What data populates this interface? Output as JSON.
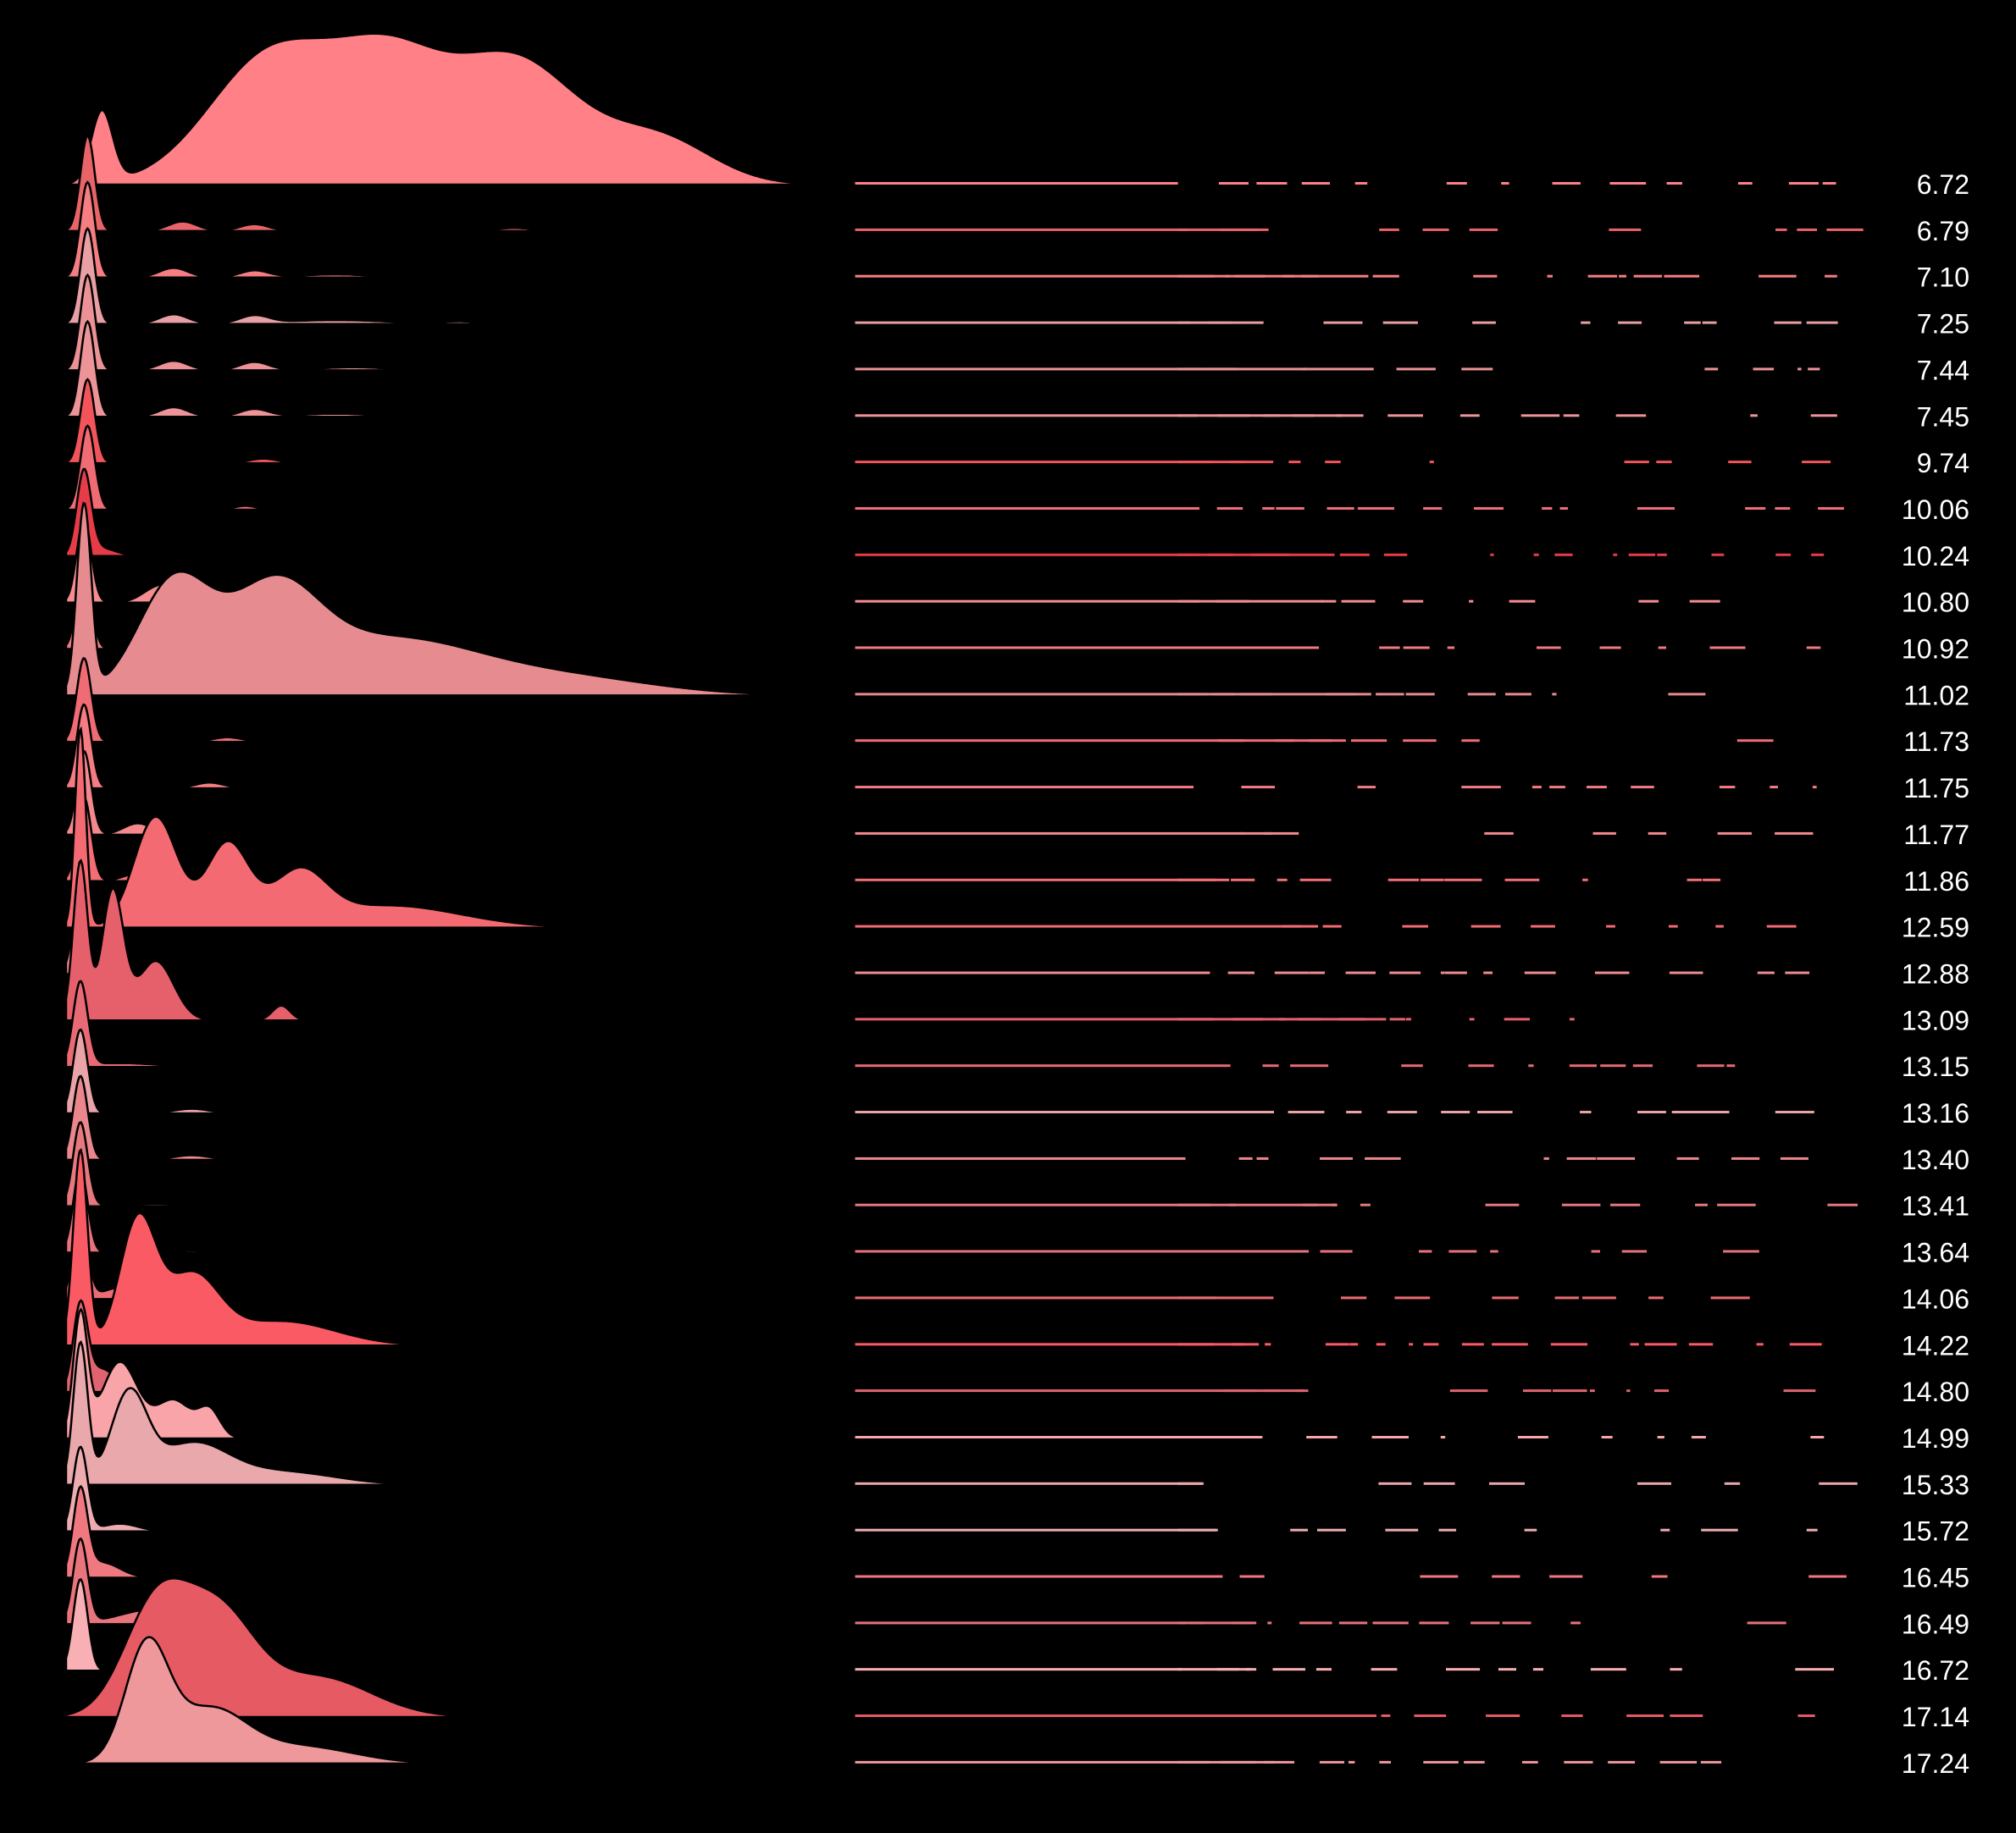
{
  "chart_data": {
    "type": "ridgeline",
    "title": "",
    "xlabel": "",
    "ylabel": "",
    "background": "#000000",
    "outline_color": "#000000",
    "label_color": "#ffffff",
    "x_range": [
      0,
      1
    ],
    "legend": "none",
    "grid": false,
    "rows": [
      {
        "label": "6.72",
        "color": "#ff8086",
        "peaks": [
          [
            0.02,
            0.006,
            0.55
          ],
          [
            0.115,
            0.035,
            1.0
          ],
          [
            0.18,
            0.03,
            0.85
          ],
          [
            0.25,
            0.035,
            0.95
          ],
          [
            0.33,
            0.03,
            0.35
          ]
        ],
        "scale": 3.4
      },
      {
        "label": "6.79",
        "color": "#e86468",
        "peaks": [
          [
            0.012,
            0.004,
            2.5
          ],
          [
            0.065,
            0.008,
            0.25
          ],
          [
            0.105,
            0.008,
            0.18
          ],
          [
            0.25,
            0.01,
            0.08
          ]
        ],
        "scale": 1.0
      },
      {
        "label": "7.10",
        "color": "#f57e82",
        "peaks": [
          [
            0.012,
            0.004,
            2.5
          ],
          [
            0.06,
            0.008,
            0.25
          ],
          [
            0.105,
            0.008,
            0.18
          ],
          [
            0.15,
            0.02,
            0.08
          ]
        ],
        "scale": 1.0
      },
      {
        "label": "7.25",
        "color": "#e8a0a4",
        "peaks": [
          [
            0.012,
            0.004,
            2.5
          ],
          [
            0.06,
            0.008,
            0.25
          ],
          [
            0.105,
            0.008,
            0.2
          ],
          [
            0.15,
            0.03,
            0.1
          ],
          [
            0.22,
            0.01,
            0.06
          ]
        ],
        "scale": 1.0
      },
      {
        "label": "7.44",
        "color": "#ec9296",
        "peaks": [
          [
            0.012,
            0.004,
            2.5
          ],
          [
            0.06,
            0.008,
            0.25
          ],
          [
            0.105,
            0.008,
            0.22
          ],
          [
            0.16,
            0.02,
            0.08
          ]
        ],
        "scale": 1.0
      },
      {
        "label": "7.45",
        "color": "#ec9498",
        "peaks": [
          [
            0.012,
            0.004,
            2.5
          ],
          [
            0.06,
            0.008,
            0.25
          ],
          [
            0.105,
            0.008,
            0.2
          ],
          [
            0.15,
            0.02,
            0.08
          ],
          [
            0.23,
            0.01,
            0.05
          ]
        ],
        "scale": 1.0
      },
      {
        "label": "9.74",
        "color": "#f2545c",
        "peaks": [
          [
            0.012,
            0.004,
            2.2
          ],
          [
            0.11,
            0.008,
            0.12
          ]
        ],
        "scale": 1.0
      },
      {
        "label": "10.06",
        "color": "#f06c74",
        "peaks": [
          [
            0.012,
            0.004,
            2.2
          ],
          [
            0.1,
            0.006,
            0.1
          ]
        ],
        "scale": 1.0
      },
      {
        "label": "10.24",
        "color": "#e63c48",
        "peaks": [
          [
            0.01,
            0.004,
            2.2
          ],
          [
            0.02,
            0.008,
            0.2
          ]
        ],
        "scale": 1.0
      },
      {
        "label": "10.80",
        "color": "#f58c90",
        "peaks": [
          [
            0.01,
            0.004,
            2.2
          ],
          [
            0.05,
            0.008,
            0.35
          ],
          [
            0.065,
            0.008,
            0.5
          ]
        ],
        "scale": 1.0
      },
      {
        "label": "10.92",
        "color": "#f07a80",
        "peaks": [
          [
            0.01,
            0.004,
            2.2
          ]
        ],
        "scale": 1.0
      },
      {
        "label": "11.02",
        "color": "#e68c90",
        "peaks": [
          [
            0.01,
            0.004,
            1.7
          ],
          [
            0.06,
            0.02,
            1.0
          ],
          [
            0.115,
            0.025,
            0.85
          ],
          [
            0.18,
            0.05,
            0.5
          ],
          [
            0.28,
            0.05,
            0.15
          ]
        ],
        "scale": 2.9
      },
      {
        "label": "11.73",
        "color": "#f06c74",
        "peaks": [
          [
            0.01,
            0.004,
            2.2
          ],
          [
            0.09,
            0.008,
            0.12
          ]
        ],
        "scale": 1.0
      },
      {
        "label": "11.75",
        "color": "#f47c82",
        "peaks": [
          [
            0.01,
            0.004,
            2.2
          ],
          [
            0.08,
            0.008,
            0.15
          ]
        ],
        "scale": 1.0
      },
      {
        "label": "11.77",
        "color": "#f4888c",
        "peaks": [
          [
            0.01,
            0.004,
            2.2
          ],
          [
            0.04,
            0.008,
            0.3
          ]
        ],
        "scale": 1.0
      },
      {
        "label": "11.86",
        "color": "#f26e74",
        "peaks": [
          [
            0.01,
            0.004,
            2.2
          ],
          [
            0.04,
            0.008,
            0.2
          ]
        ],
        "scale": 1.0
      },
      {
        "label": "12.59",
        "color": "#f46a72",
        "peaks": [
          [
            0.008,
            0.003,
            1.8
          ],
          [
            0.05,
            0.012,
            1.0
          ],
          [
            0.09,
            0.012,
            0.75
          ],
          [
            0.13,
            0.015,
            0.45
          ],
          [
            0.18,
            0.04,
            0.2
          ]
        ],
        "scale": 2.9
      },
      {
        "label": "12.88",
        "color": "#f28c90",
        "peaks": [
          [
            0.008,
            0.004,
            2.2
          ]
        ],
        "scale": 1.0
      },
      {
        "label": "13.09",
        "color": "#e6606c",
        "peaks": [
          [
            0.008,
            0.004,
            1.6
          ],
          [
            0.026,
            0.006,
            1.3
          ],
          [
            0.05,
            0.01,
            0.6
          ],
          [
            0.12,
            0.005,
            0.15
          ]
        ],
        "scale": 2.6
      },
      {
        "label": "13.15",
        "color": "#e86a74",
        "peaks": [
          [
            0.008,
            0.004,
            2.2
          ],
          [
            0.03,
            0.02,
            0.1
          ]
        ],
        "scale": 1.0
      },
      {
        "label": "13.16",
        "color": "#eaa4a8",
        "peaks": [
          [
            0.008,
            0.004,
            2.2
          ],
          [
            0.07,
            0.01,
            0.12
          ]
        ],
        "scale": 1.0
      },
      {
        "label": "13.40",
        "color": "#ea868c",
        "peaks": [
          [
            0.008,
            0.004,
            2.2
          ],
          [
            0.07,
            0.01,
            0.12
          ]
        ],
        "scale": 1.0
      },
      {
        "label": "13.41",
        "color": "#e6787e",
        "peaks": [
          [
            0.008,
            0.004,
            2.2
          ],
          [
            0.05,
            0.02,
            0.06
          ]
        ],
        "scale": 1.0
      },
      {
        "label": "13.64",
        "color": "#e8727a",
        "peaks": [
          [
            0.008,
            0.004,
            2.2
          ],
          [
            0.07,
            0.01,
            0.06
          ]
        ],
        "scale": 1.0
      },
      {
        "label": "14.06",
        "color": "#ec6c74",
        "peaks": [
          [
            0.008,
            0.004,
            2.2
          ],
          [
            0.03,
            0.01,
            0.3
          ],
          [
            0.075,
            0.01,
            0.15
          ]
        ],
        "scale": 1.0
      },
      {
        "label": "14.22",
        "color": "#fa5a64",
        "peaks": [
          [
            0.008,
            0.004,
            1.6
          ],
          [
            0.04,
            0.01,
            1.0
          ],
          [
            0.07,
            0.015,
            0.55
          ],
          [
            0.12,
            0.03,
            0.2
          ]
        ],
        "scale": 3.2
      },
      {
        "label": "14.80",
        "color": "#e06470",
        "peaks": [
          [
            0.008,
            0.004,
            2.2
          ],
          [
            0.02,
            0.008,
            0.6
          ]
        ],
        "scale": 1.0
      },
      {
        "label": "14.99",
        "color": "#f8a4a8",
        "peaks": [
          [
            0.008,
            0.004,
            1.6
          ],
          [
            0.03,
            0.01,
            1.0
          ],
          [
            0.06,
            0.01,
            0.5
          ],
          [
            0.08,
            0.006,
            0.35
          ]
        ],
        "scale": 2.0
      },
      {
        "label": "15.33",
        "color": "#e8a8ac",
        "peaks": [
          [
            0.008,
            0.004,
            1.6
          ],
          [
            0.035,
            0.01,
            1.0
          ],
          [
            0.07,
            0.02,
            0.45
          ],
          [
            0.12,
            0.03,
            0.15
          ]
        ],
        "scale": 2.3
      },
      {
        "label": "15.72",
        "color": "#ecacb0",
        "peaks": [
          [
            0.008,
            0.004,
            2.2
          ],
          [
            0.03,
            0.01,
            0.2
          ]
        ],
        "scale": 1.0
      },
      {
        "label": "16.45",
        "color": "#f07880",
        "peaks": [
          [
            0.008,
            0.004,
            2.2
          ],
          [
            0.02,
            0.01,
            0.4
          ]
        ],
        "scale": 1.0
      },
      {
        "label": "16.49",
        "color": "#e8747c",
        "peaks": [
          [
            0.008,
            0.004,
            2.2
          ],
          [
            0.05,
            0.02,
            0.4
          ]
        ],
        "scale": 1.0
      },
      {
        "label": "16.72",
        "color": "#f8b0b4",
        "peaks": [
          [
            0.008,
            0.004,
            2.4
          ]
        ],
        "scale": 1.0
      },
      {
        "label": "17.14",
        "color": "#e65a64",
        "peaks": [
          [
            0.05,
            0.018,
            0.95
          ],
          [
            0.085,
            0.02,
            0.85
          ],
          [
            0.14,
            0.03,
            0.35
          ]
        ],
        "scale": 3.0
      },
      {
        "label": "17.24",
        "color": "#ee989c",
        "peaks": [
          [
            0.045,
            0.012,
            1.0
          ],
          [
            0.08,
            0.02,
            0.45
          ],
          [
            0.13,
            0.03,
            0.15
          ]
        ],
        "scale": 3.0
      }
    ]
  }
}
